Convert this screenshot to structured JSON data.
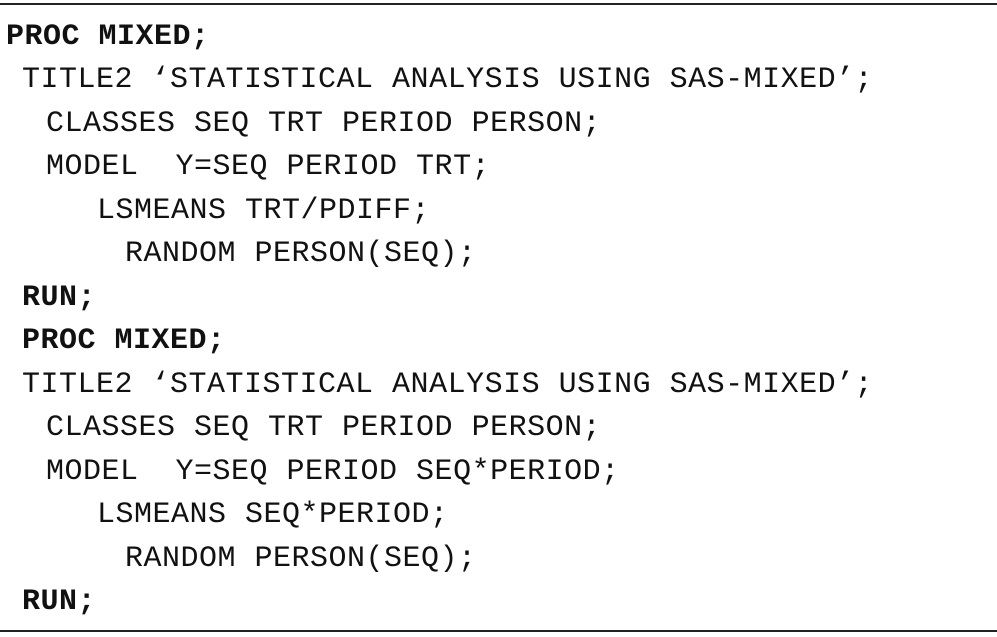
{
  "listing": {
    "lines": [
      {
        "text": "PROC MIXED;",
        "bold": true
      },
      {
        "text": "TITLE2 ‘STATISTICAL ANALYSIS USING SAS-MIXED’;",
        "bold": false
      },
      {
        "text": "CLASSES SEQ TRT PERIOD PERSON;",
        "bold": false
      },
      {
        "text": "MODEL  Y=SEQ PERIOD TRT;",
        "bold": false
      },
      {
        "text": "LSMEANS TRT/PDIFF;",
        "bold": false
      },
      {
        "text": "RANDOM PERSON(SEQ);",
        "bold": false
      },
      {
        "text": "RUN;",
        "bold": true
      },
      {
        "text": "PROC MIXED;",
        "bold": true
      },
      {
        "text": "TITLE2 ‘STATISTICAL ANALYSIS USING SAS-MIXED’;",
        "bold": false
      },
      {
        "text": "CLASSES SEQ TRT PERIOD PERSON;",
        "bold": false
      },
      {
        "text": "MODEL  Y=SEQ PERIOD SEQ*PERIOD;",
        "bold": false
      },
      {
        "text": "LSMEANS SEQ*PERIOD;",
        "bold": false
      },
      {
        "text": "RANDOM PERSON(SEQ);",
        "bold": false
      },
      {
        "text": "RUN;",
        "bold": true
      }
    ]
  }
}
